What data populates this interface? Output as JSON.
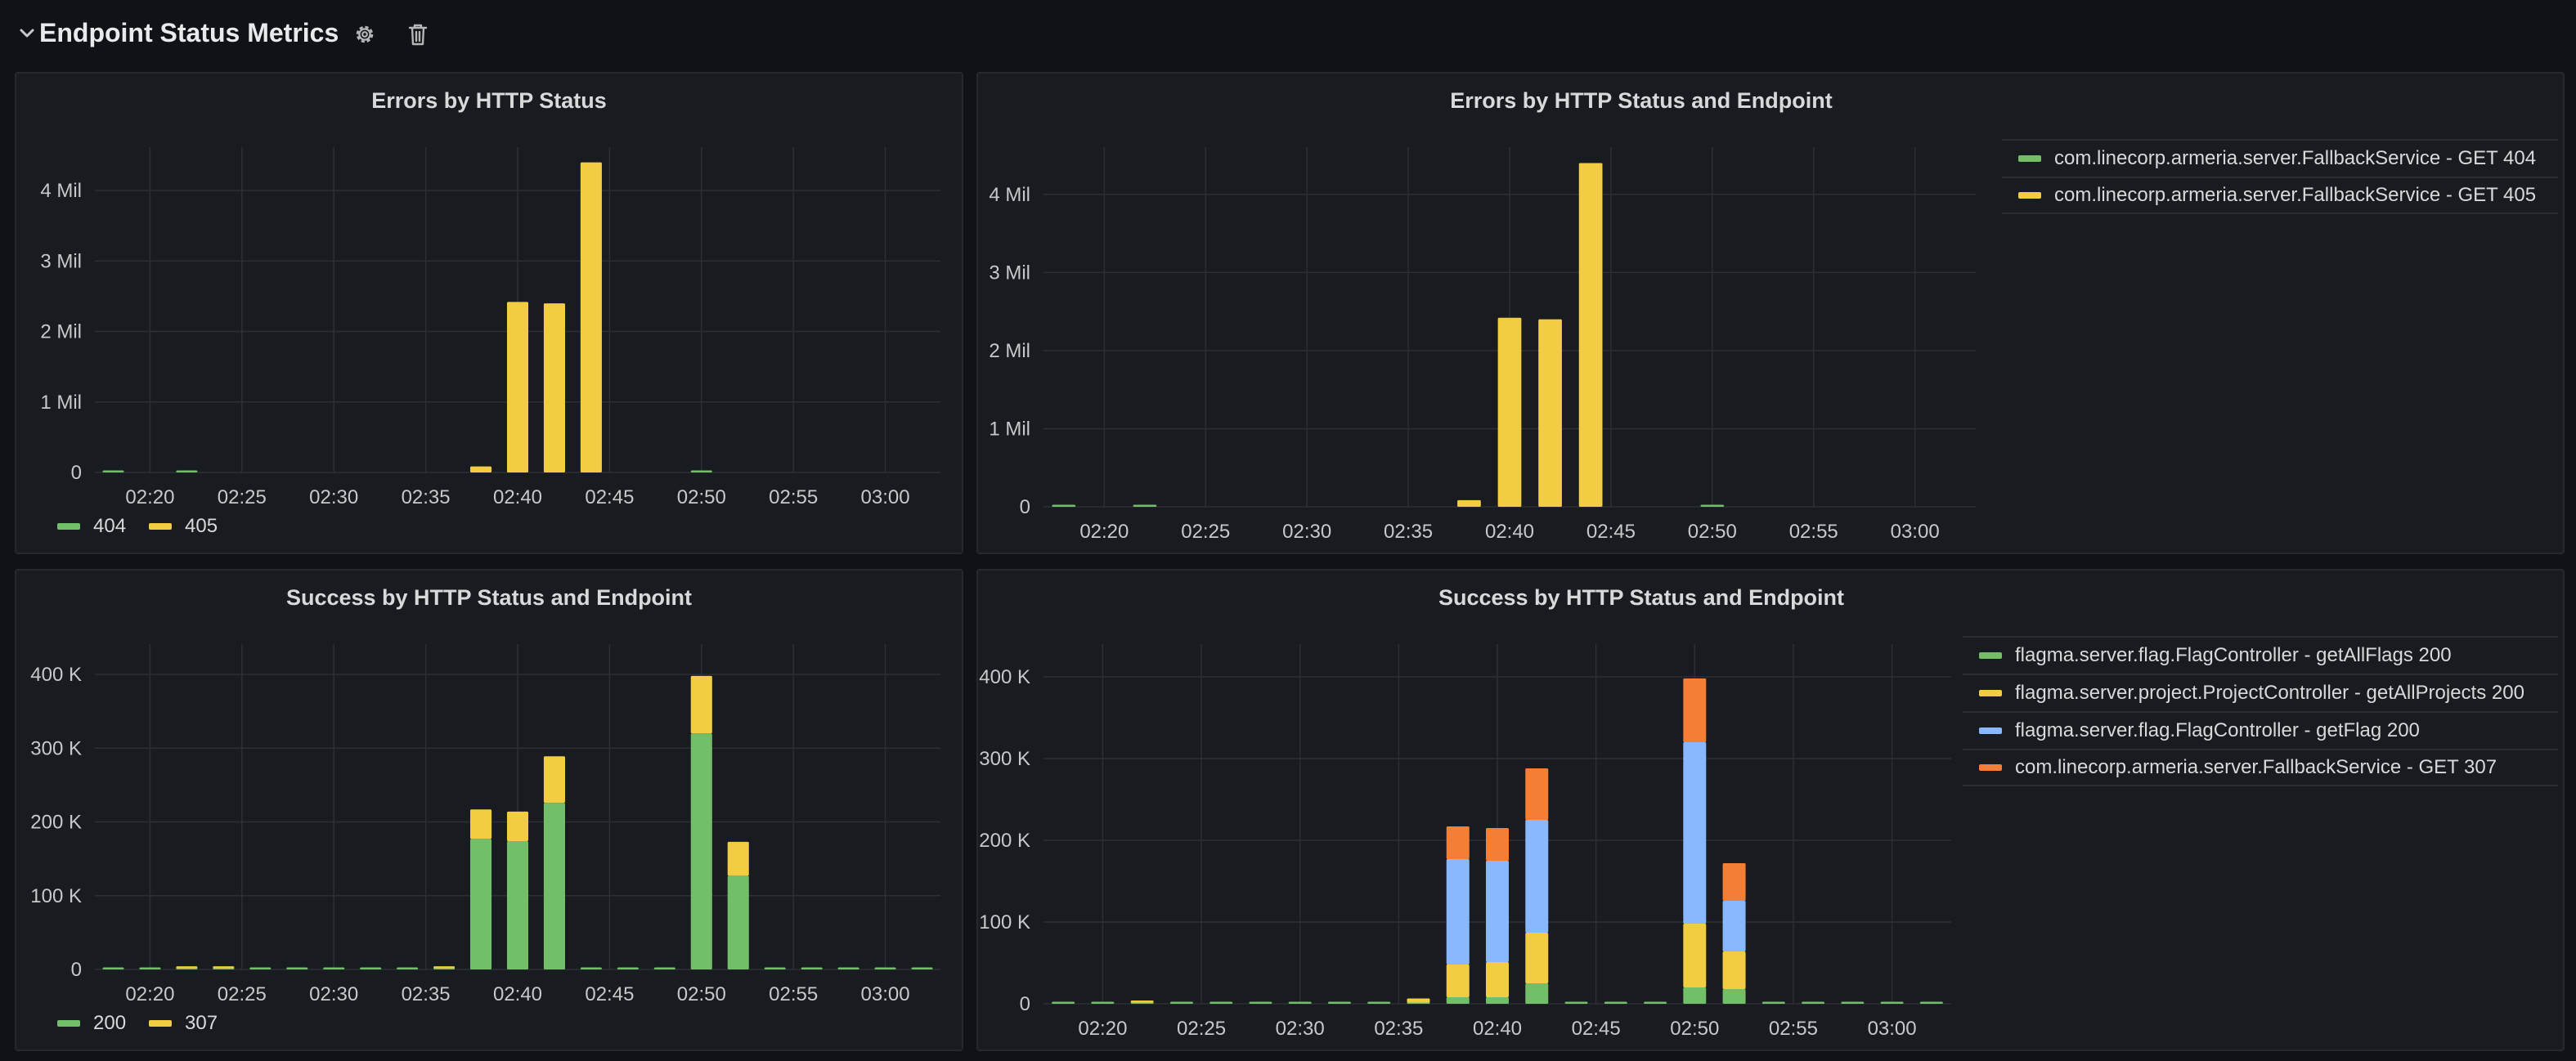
{
  "row": {
    "title": "Endpoint Status Metrics",
    "icons": [
      "chevron-down-icon",
      "gear-icon",
      "trash-icon"
    ]
  },
  "colors": {
    "green": "#73bf69",
    "yellow": "#f2cc43",
    "blue": "#8ab8ff",
    "orange": "#f47e33",
    "grid": "#2c2f35",
    "panel_bg": "#181b1f",
    "page_bg": "#111217"
  },
  "panels": [
    {
      "title": "Errors by HTTP Status",
      "legend_mode": "bottom",
      "legend": [
        {
          "label": "404",
          "color": "#73bf69"
        },
        {
          "label": "405",
          "color": "#f2cc43"
        }
      ]
    },
    {
      "title": "Errors by HTTP Status and Endpoint",
      "legend_mode": "table",
      "legend": [
        {
          "label": "com.linecorp.armeria.server.FallbackService - GET 404",
          "color": "#73bf69"
        },
        {
          "label": "com.linecorp.armeria.server.FallbackService - GET 405",
          "color": "#f2cc43"
        }
      ]
    },
    {
      "title": "Success by HTTP Status and Endpoint",
      "legend_mode": "bottom",
      "legend": [
        {
          "label": "200",
          "color": "#73bf69"
        },
        {
          "label": "307",
          "color": "#f2cc43"
        }
      ]
    },
    {
      "title": "Success by HTTP Status and Endpoint",
      "legend_mode": "table",
      "legend": [
        {
          "label": "flagma.server.flag.FlagController - getAllFlags 200",
          "color": "#73bf69"
        },
        {
          "label": "flagma.server.project.ProjectController - getAllProjects 200",
          "color": "#f2cc43"
        },
        {
          "label": "flagma.server.flag.FlagController - getFlag 200",
          "color": "#8ab8ff"
        },
        {
          "label": "com.linecorp.armeria.server.FallbackService - GET 307",
          "color": "#f47e33"
        }
      ]
    }
  ],
  "chart_data": [
    {
      "type": "bar",
      "title": "Errors by HTTP Status",
      "stacked": true,
      "x": [
        "02:18",
        "02:20",
        "02:22",
        "02:24",
        "02:26",
        "02:28",
        "02:30",
        "02:32",
        "02:34",
        "02:36",
        "02:38",
        "02:40",
        "02:42",
        "02:44",
        "02:46",
        "02:48",
        "02:50",
        "02:52",
        "02:54",
        "02:56",
        "02:58",
        "03:00",
        "03:02"
      ],
      "x_ticks": [
        "02:20",
        "02:25",
        "02:30",
        "02:35",
        "02:40",
        "02:45",
        "02:50",
        "02:55",
        "03:00"
      ],
      "y_ticks": [
        {
          "v": 0,
          "label": "0"
        },
        {
          "v": 1000000,
          "label": "1 Mil"
        },
        {
          "v": 2000000,
          "label": "2 Mil"
        },
        {
          "v": 3000000,
          "label": "3 Mil"
        },
        {
          "v": 4000000,
          "label": "4 Mil"
        }
      ],
      "ylim": [
        0,
        4500000
      ],
      "series": [
        {
          "name": "404",
          "color": "#73bf69",
          "values": [
            15000,
            0,
            15000,
            0,
            0,
            0,
            0,
            0,
            0,
            0,
            0,
            0,
            0,
            0,
            0,
            0,
            15000,
            0,
            0,
            0,
            0,
            0,
            0
          ]
        },
        {
          "name": "405",
          "color": "#f2cc43",
          "values": [
            0,
            0,
            0,
            0,
            0,
            0,
            0,
            0,
            0,
            0,
            85000,
            2420000,
            2400000,
            4400000,
            0,
            0,
            0,
            0,
            0,
            0,
            0,
            0,
            0
          ]
        }
      ]
    },
    {
      "type": "bar",
      "title": "Errors by HTTP Status and Endpoint",
      "stacked": true,
      "x": [
        "02:18",
        "02:20",
        "02:22",
        "02:24",
        "02:26",
        "02:28",
        "02:30",
        "02:32",
        "02:34",
        "02:36",
        "02:38",
        "02:40",
        "02:42",
        "02:44",
        "02:46",
        "02:48",
        "02:50",
        "02:52",
        "02:54",
        "02:56",
        "02:58",
        "03:00",
        "03:02"
      ],
      "x_ticks": [
        "02:20",
        "02:25",
        "02:30",
        "02:35",
        "02:40",
        "02:45",
        "02:50",
        "02:55",
        "03:00"
      ],
      "y_ticks": [
        {
          "v": 0,
          "label": "0"
        },
        {
          "v": 1000000,
          "label": "1 Mil"
        },
        {
          "v": 2000000,
          "label": "2 Mil"
        },
        {
          "v": 3000000,
          "label": "3 Mil"
        },
        {
          "v": 4000000,
          "label": "4 Mil"
        }
      ],
      "ylim": [
        0,
        4500000
      ],
      "series": [
        {
          "name": "com.linecorp.armeria.server.FallbackService - GET 404",
          "color": "#73bf69",
          "values": [
            15000,
            0,
            15000,
            0,
            0,
            0,
            0,
            0,
            0,
            0,
            0,
            0,
            0,
            0,
            0,
            0,
            15000,
            0,
            0,
            0,
            0,
            0,
            0
          ]
        },
        {
          "name": "com.linecorp.armeria.server.FallbackService - GET 405",
          "color": "#f2cc43",
          "values": [
            0,
            0,
            0,
            0,
            0,
            0,
            0,
            0,
            0,
            0,
            85000,
            2420000,
            2400000,
            4400000,
            0,
            0,
            0,
            0,
            0,
            0,
            0,
            0,
            0
          ]
        }
      ]
    },
    {
      "type": "bar",
      "title": "Success by HTTP Status and Endpoint",
      "stacked": true,
      "x": [
        "02:18",
        "02:20",
        "02:22",
        "02:24",
        "02:26",
        "02:28",
        "02:30",
        "02:32",
        "02:34",
        "02:36",
        "02:38",
        "02:40",
        "02:42",
        "02:44",
        "02:46",
        "02:48",
        "02:50",
        "02:52",
        "02:54",
        "02:56",
        "02:58",
        "03:00",
        "03:02"
      ],
      "x_ticks": [
        "02:20",
        "02:25",
        "02:30",
        "02:35",
        "02:40",
        "02:45",
        "02:50",
        "02:55",
        "03:00"
      ],
      "y_ticks": [
        {
          "v": 0,
          "label": "0"
        },
        {
          "v": 100000,
          "label": "100 K"
        },
        {
          "v": 200000,
          "label": "200 K"
        },
        {
          "v": 300000,
          "label": "300 K"
        },
        {
          "v": 400000,
          "label": "400 K"
        }
      ],
      "ylim": [
        0,
        430000
      ],
      "series": [
        {
          "name": "200",
          "color": "#73bf69",
          "values": [
            1500,
            1500,
            1500,
            1500,
            1500,
            1500,
            1500,
            1500,
            1500,
            1500,
            177000,
            174000,
            226000,
            1500,
            1500,
            1500,
            320000,
            127000,
            1500,
            1500,
            1500,
            1500,
            1500
          ]
        },
        {
          "name": "307",
          "color": "#f2cc43",
          "values": [
            0,
            0,
            1500,
            1500,
            0,
            0,
            0,
            0,
            0,
            2000,
            40000,
            40000,
            63000,
            0,
            0,
            0,
            78000,
            46000,
            0,
            0,
            0,
            0,
            0
          ]
        }
      ]
    },
    {
      "type": "bar",
      "title": "Success by HTTP Status and Endpoint",
      "stacked": true,
      "x": [
        "02:18",
        "02:20",
        "02:22",
        "02:24",
        "02:26",
        "02:28",
        "02:30",
        "02:32",
        "02:34",
        "02:36",
        "02:38",
        "02:40",
        "02:42",
        "02:44",
        "02:46",
        "02:48",
        "02:50",
        "02:52",
        "02:54",
        "02:56",
        "02:58",
        "03:00",
        "03:02"
      ],
      "x_ticks": [
        "02:20",
        "02:25",
        "02:30",
        "02:35",
        "02:40",
        "02:45",
        "02:50",
        "02:55",
        "03:00"
      ],
      "y_ticks": [
        {
          "v": 0,
          "label": "0"
        },
        {
          "v": 100000,
          "label": "100 K"
        },
        {
          "v": 200000,
          "label": "200 K"
        },
        {
          "v": 300000,
          "label": "300 K"
        },
        {
          "v": 400000,
          "label": "400 K"
        }
      ],
      "ylim": [
        0,
        430000
      ],
      "series": [
        {
          "name": "flagma.server.flag.FlagController - getAllFlags 200",
          "color": "#73bf69",
          "values": [
            1500,
            1500,
            1500,
            1500,
            1500,
            1500,
            1500,
            1500,
            1500,
            1500,
            8000,
            8000,
            25000,
            1500,
            1500,
            1500,
            20000,
            18000,
            1500,
            1500,
            1500,
            1500,
            1500
          ]
        },
        {
          "name": "flagma.server.project.ProjectController - getAllProjects 200",
          "color": "#f2cc43",
          "values": [
            0,
            0,
            1500,
            0,
            0,
            0,
            0,
            0,
            0,
            5000,
            40000,
            43000,
            62000,
            0,
            0,
            0,
            78000,
            46000,
            0,
            0,
            0,
            0,
            0
          ]
        },
        {
          "name": "flagma.server.flag.FlagController - getFlag 200",
          "color": "#8ab8ff",
          "values": [
            0,
            0,
            0,
            0,
            0,
            0,
            0,
            0,
            0,
            0,
            129000,
            124000,
            138000,
            0,
            0,
            0,
            222000,
            62000,
            0,
            0,
            0,
            0,
            0
          ]
        },
        {
          "name": "com.linecorp.armeria.server.FallbackService - GET 307",
          "color": "#f47e33",
          "values": [
            0,
            0,
            0,
            0,
            0,
            0,
            0,
            0,
            0,
            0,
            40000,
            40000,
            63000,
            0,
            0,
            0,
            78000,
            46000,
            0,
            0,
            0,
            0,
            0
          ]
        }
      ]
    }
  ]
}
